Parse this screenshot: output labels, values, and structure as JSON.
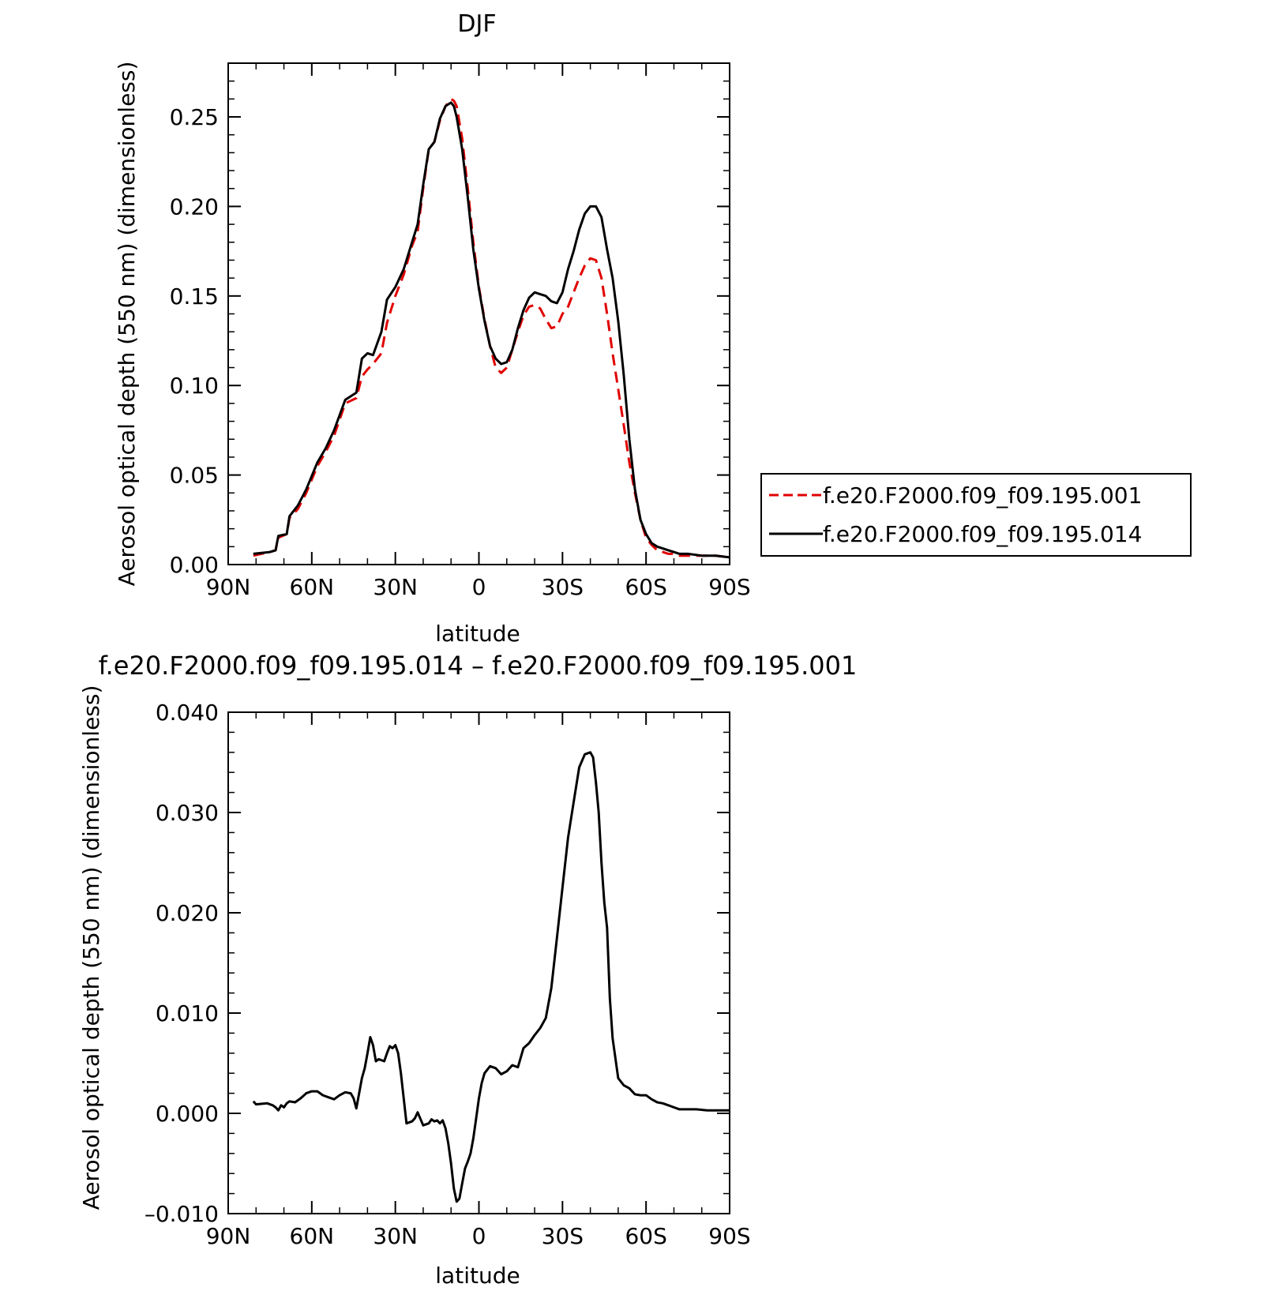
{
  "chart_data": [
    {
      "type": "line",
      "title": "DJF",
      "xlabel": "latitude",
      "ylabel": "Aerosol optical depth (550 nm) (dimensionless)",
      "xlim": [
        -90,
        90
      ],
      "ylim": [
        0,
        0.28
      ],
      "x_ticks": [
        -90,
        -60,
        -30,
        0,
        30,
        60,
        90
      ],
      "x_tick_labels": [
        "90N",
        "60N",
        "30N",
        "0",
        "30S",
        "60S",
        "90S"
      ],
      "y_ticks": [
        0,
        0.05,
        0.1,
        0.15,
        0.2,
        0.25
      ],
      "y_tick_labels": [
        "0.00",
        "0.05",
        "0.10",
        "0.15",
        "0.20",
        "0.25"
      ],
      "legend": {
        "placement": "right",
        "entries": [
          {
            "label": "f.e20.F2000.f09_f09.195.001",
            "color": "#e00000",
            "dash": true
          },
          {
            "label": "f.e20.F2000.f09_f09.195.014",
            "color": "#000000",
            "dash": false
          }
        ]
      },
      "series": [
        {
          "name": "f.e20.F2000.f09_f09.195.001",
          "color": "#e00000",
          "dash": true,
          "x": [
            -81,
            -75,
            -73,
            -72,
            -69,
            -68,
            -65,
            -62,
            -58,
            -55,
            -52,
            -48,
            -44,
            -42,
            -40,
            -38,
            -35,
            -33,
            -30,
            -27,
            -24,
            -22,
            -20,
            -18,
            -16,
            -14,
            -12,
            -10,
            -9,
            -8,
            -6,
            -4,
            -2,
            0,
            2,
            4,
            6,
            8,
            10,
            12,
            14,
            16,
            18,
            20,
            22,
            24,
            26,
            28,
            30,
            32,
            34,
            36,
            38,
            40,
            42,
            44,
            46,
            48,
            50,
            52,
            54,
            56,
            58,
            60,
            62,
            64,
            66,
            68,
            70,
            72,
            75,
            80,
            85,
            90
          ],
          "y": [
            0.005,
            0.007,
            0.008,
            0.015,
            0.017,
            0.026,
            0.031,
            0.04,
            0.055,
            0.063,
            0.072,
            0.09,
            0.093,
            0.105,
            0.109,
            0.112,
            0.118,
            0.135,
            0.15,
            0.162,
            0.178,
            0.186,
            0.21,
            0.232,
            0.236,
            0.248,
            0.256,
            0.26,
            0.259,
            0.256,
            0.238,
            0.21,
            0.18,
            0.155,
            0.137,
            0.122,
            0.11,
            0.107,
            0.11,
            0.12,
            0.13,
            0.139,
            0.144,
            0.145,
            0.143,
            0.137,
            0.132,
            0.133,
            0.14,
            0.144,
            0.152,
            0.16,
            0.167,
            0.171,
            0.17,
            0.16,
            0.14,
            0.118,
            0.098,
            0.078,
            0.057,
            0.04,
            0.025,
            0.015,
            0.011,
            0.008,
            0.007,
            0.006,
            0.006,
            0.005,
            0.005,
            0.005,
            0.005,
            0.004
          ],
          "y_note": ""
        },
        {
          "name": "f.e20.F2000.f09_f09.195.014",
          "color": "#000000",
          "dash": false,
          "x": [
            -81,
            -75,
            -73,
            -72,
            -69,
            -68,
            -65,
            -62,
            -58,
            -55,
            -52,
            -48,
            -44,
            -42,
            -40,
            -38,
            -35,
            -33,
            -30,
            -27,
            -24,
            -22,
            -20,
            -18,
            -16,
            -14,
            -12,
            -10,
            -9,
            -8,
            -6,
            -4,
            -2,
            0,
            2,
            4,
            6,
            8,
            10,
            12,
            14,
            16,
            18,
            20,
            22,
            24,
            26,
            28,
            30,
            32,
            34,
            36,
            38,
            40,
            42,
            44,
            46,
            48,
            50,
            52,
            54,
            56,
            58,
            60,
            62,
            64,
            66,
            68,
            70,
            72,
            75,
            80,
            85,
            90
          ],
          "y": [
            0.006,
            0.007,
            0.008,
            0.016,
            0.017,
            0.027,
            0.033,
            0.042,
            0.057,
            0.065,
            0.075,
            0.092,
            0.096,
            0.115,
            0.118,
            0.117,
            0.13,
            0.148,
            0.155,
            0.165,
            0.18,
            0.19,
            0.212,
            0.232,
            0.236,
            0.249,
            0.256,
            0.258,
            0.256,
            0.25,
            0.232,
            0.205,
            0.176,
            0.154,
            0.136,
            0.122,
            0.115,
            0.112,
            0.113,
            0.12,
            0.132,
            0.142,
            0.149,
            0.152,
            0.151,
            0.15,
            0.147,
            0.146,
            0.152,
            0.165,
            0.175,
            0.187,
            0.196,
            0.2,
            0.2,
            0.194,
            0.176,
            0.16,
            0.136,
            0.106,
            0.07,
            0.042,
            0.025,
            0.017,
            0.012,
            0.01,
            0.009,
            0.008,
            0.007,
            0.006,
            0.006,
            0.005,
            0.005,
            0.004
          ]
        }
      ]
    },
    {
      "type": "line",
      "title": "f.e20.F2000.f09_f09.195.014 – f.e20.F2000.f09_f09.195.001",
      "xlabel": "latitude",
      "ylabel": "Aerosol optical depth (550 nm) (dimensionless)",
      "xlim": [
        -90,
        90
      ],
      "ylim": [
        -0.01,
        0.04
      ],
      "x_ticks": [
        -90,
        -60,
        -30,
        0,
        30,
        60,
        90
      ],
      "x_tick_labels": [
        "90N",
        "60N",
        "30N",
        "0",
        "30S",
        "60S",
        "90S"
      ],
      "y_ticks": [
        -0.01,
        0,
        0.01,
        0.02,
        0.03,
        0.04
      ],
      "y_tick_labels": [
        "–0.010",
        "0.000",
        "0.010",
        "0.020",
        "0.030",
        "0.040"
      ],
      "series": [
        {
          "color": "#000000",
          "dash": false,
          "x": [
            -81,
            -80,
            -76,
            -74,
            -73,
            -72,
            -71,
            -70,
            -69,
            -68,
            -66,
            -64,
            -62,
            -60,
            -58,
            -56,
            -54,
            -52,
            -50,
            -48,
            -46,
            -45,
            -44,
            -42,
            -41,
            -40,
            -39,
            -38,
            -37,
            -36,
            -34,
            -33,
            -32,
            -31,
            -30,
            -29,
            -28,
            -26,
            -24,
            -23,
            -22,
            -20,
            -18,
            -17,
            -16,
            -15,
            -14,
            -13,
            -12,
            -11,
            -10,
            -9,
            -8,
            -7,
            -6,
            -5,
            -4,
            -3,
            -2,
            -1,
            0,
            1,
            2,
            4,
            6,
            8,
            10,
            12,
            14,
            16,
            18,
            20,
            22,
            24,
            26,
            28,
            30,
            32,
            34,
            36,
            38,
            40,
            41,
            42,
            43,
            44,
            45,
            46,
            47,
            48,
            50,
            52,
            54,
            56,
            58,
            60,
            62,
            64,
            66,
            68,
            70,
            72,
            74,
            78,
            82,
            86,
            90
          ],
          "y": [
            0.0012,
            0.0009,
            0.001,
            0.0008,
            0.0006,
            0.0003,
            0.0008,
            0.0006,
            0.001,
            0.0012,
            0.0011,
            0.0015,
            0.002,
            0.0022,
            0.0022,
            0.0018,
            0.0016,
            0.0014,
            0.0018,
            0.0021,
            0.002,
            0.0015,
            0.0005,
            0.0035,
            0.0045,
            0.006,
            0.0076,
            0.0068,
            0.0052,
            0.0054,
            0.0052,
            0.006,
            0.0067,
            0.0065,
            0.0068,
            0.006,
            0.004,
            -0.001,
            -0.0008,
            -0.0005,
            0.0001,
            -0.0012,
            -0.001,
            -0.0006,
            -0.0008,
            -0.0007,
            -0.001,
            -0.0007,
            -0.0015,
            -0.003,
            -0.005,
            -0.0075,
            -0.0088,
            -0.0085,
            -0.007,
            -0.0055,
            -0.0048,
            -0.004,
            -0.0025,
            -0.0005,
            0.0015,
            0.003,
            0.004,
            0.0047,
            0.0045,
            0.0039,
            0.0042,
            0.0048,
            0.0046,
            0.0065,
            0.007,
            0.0078,
            0.0085,
            0.0095,
            0.0125,
            0.0175,
            0.0225,
            0.0275,
            0.031,
            0.0345,
            0.0358,
            0.036,
            0.0355,
            0.033,
            0.03,
            0.025,
            0.021,
            0.0185,
            0.0115,
            0.0075,
            0.0035,
            0.0028,
            0.0025,
            0.0019,
            0.0018,
            0.0018,
            0.0014,
            0.0011,
            0.001,
            0.0008,
            0.0006,
            0.0004,
            0.0004,
            0.0004,
            0.0003,
            0.0003,
            0.0003
          ]
        }
      ]
    }
  ]
}
